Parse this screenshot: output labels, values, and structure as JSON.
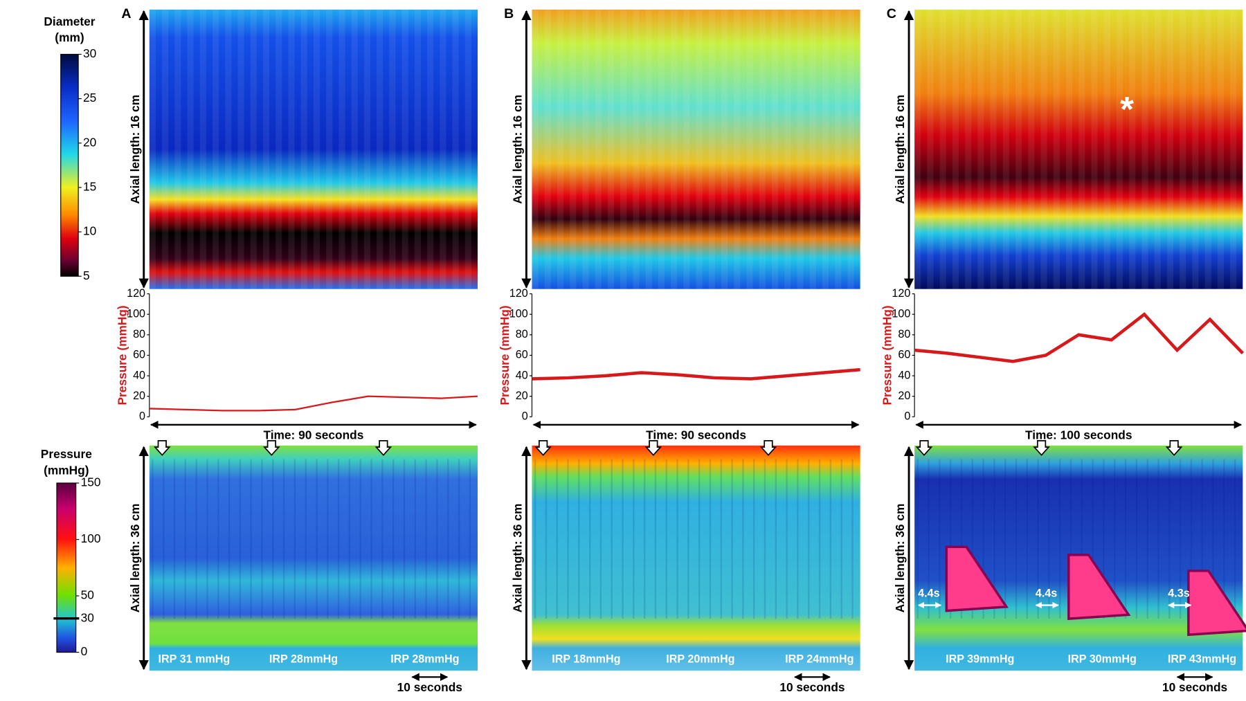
{
  "figure": {
    "colorbars": [
      {
        "title_lines": [
          "Diameter",
          "(mm)"
        ],
        "range": [
          5,
          30
        ],
        "ticks": [
          30,
          25,
          20,
          15,
          10,
          5
        ]
      },
      {
        "title_lines": [
          "Pressure",
          "(mmHg)"
        ],
        "range": [
          0,
          150
        ],
        "ticks": [
          150,
          100,
          50,
          30,
          0
        ],
        "marked_tick": 30
      }
    ],
    "panels": [
      {
        "label": "A",
        "diameter_axis": "Axial length: 16 cm",
        "hrm_axis": "Axial length: 36 cm",
        "irp_labels": [
          "IRP 31 mmHg",
          "IRP 28mmHg",
          "IRP 28mmHg"
        ],
        "scale_label": "10 seconds"
      },
      {
        "label": "B",
        "diameter_axis": "Axial length: 16 cm",
        "hrm_axis": "Axial length: 36 cm",
        "irp_labels": [
          "IRP 18mmHg",
          "IRP 20mmHg",
          "IRP 24mmHg"
        ],
        "scale_label": "10 seconds"
      },
      {
        "label": "C",
        "diameter_axis": "Axial length: 16 cm",
        "hrm_axis": "Axial length: 36 cm",
        "irp_labels": [
          "IRP 39mmHg",
          "IRP 30mmHg",
          "IRP 43mmHg"
        ],
        "scale_label": "10 seconds",
        "durations": [
          "4.4s",
          "4.4s",
          "4.3s"
        ],
        "marker": "*"
      }
    ]
  },
  "chart_data": [
    {
      "type": "line",
      "ylabel": "Pressure (mmHg)",
      "xlabel": "Time:  90 seconds",
      "color": "#d7191c",
      "x": [
        0,
        10,
        20,
        30,
        40,
        50,
        60,
        70,
        80,
        90
      ],
      "values": [
        8,
        7,
        6,
        6,
        7,
        14,
        20,
        19,
        18,
        20
      ],
      "xlim": [
        0,
        90
      ],
      "ylim": [
        0,
        120
      ],
      "yticks": [
        0,
        20,
        40,
        60,
        80,
        100,
        120
      ]
    },
    {
      "type": "line",
      "ylabel": "Pressure (mmHg)",
      "xlabel": "Time:  90 seconds",
      "color": "#d7191c",
      "x": [
        0,
        10,
        20,
        30,
        40,
        50,
        60,
        70,
        80,
        90
      ],
      "values": [
        37,
        38,
        40,
        43,
        41,
        38,
        37,
        40,
        43,
        46
      ],
      "xlim": [
        0,
        90
      ],
      "ylim": [
        0,
        120
      ],
      "yticks": [
        0,
        20,
        40,
        60,
        80,
        100,
        120
      ]
    },
    {
      "type": "line",
      "ylabel": "Pressure (mmHg)",
      "xlabel": "Time:  100 seconds",
      "color": "#d7191c",
      "x": [
        0,
        10,
        20,
        30,
        40,
        50,
        60,
        70,
        80,
        90,
        100
      ],
      "values": [
        65,
        62,
        58,
        54,
        60,
        80,
        75,
        100,
        65,
        95,
        62
      ],
      "xlim": [
        0,
        100
      ],
      "ylim": [
        0,
        120
      ],
      "yticks": [
        0,
        20,
        40,
        60,
        80,
        100,
        120
      ]
    }
  ]
}
